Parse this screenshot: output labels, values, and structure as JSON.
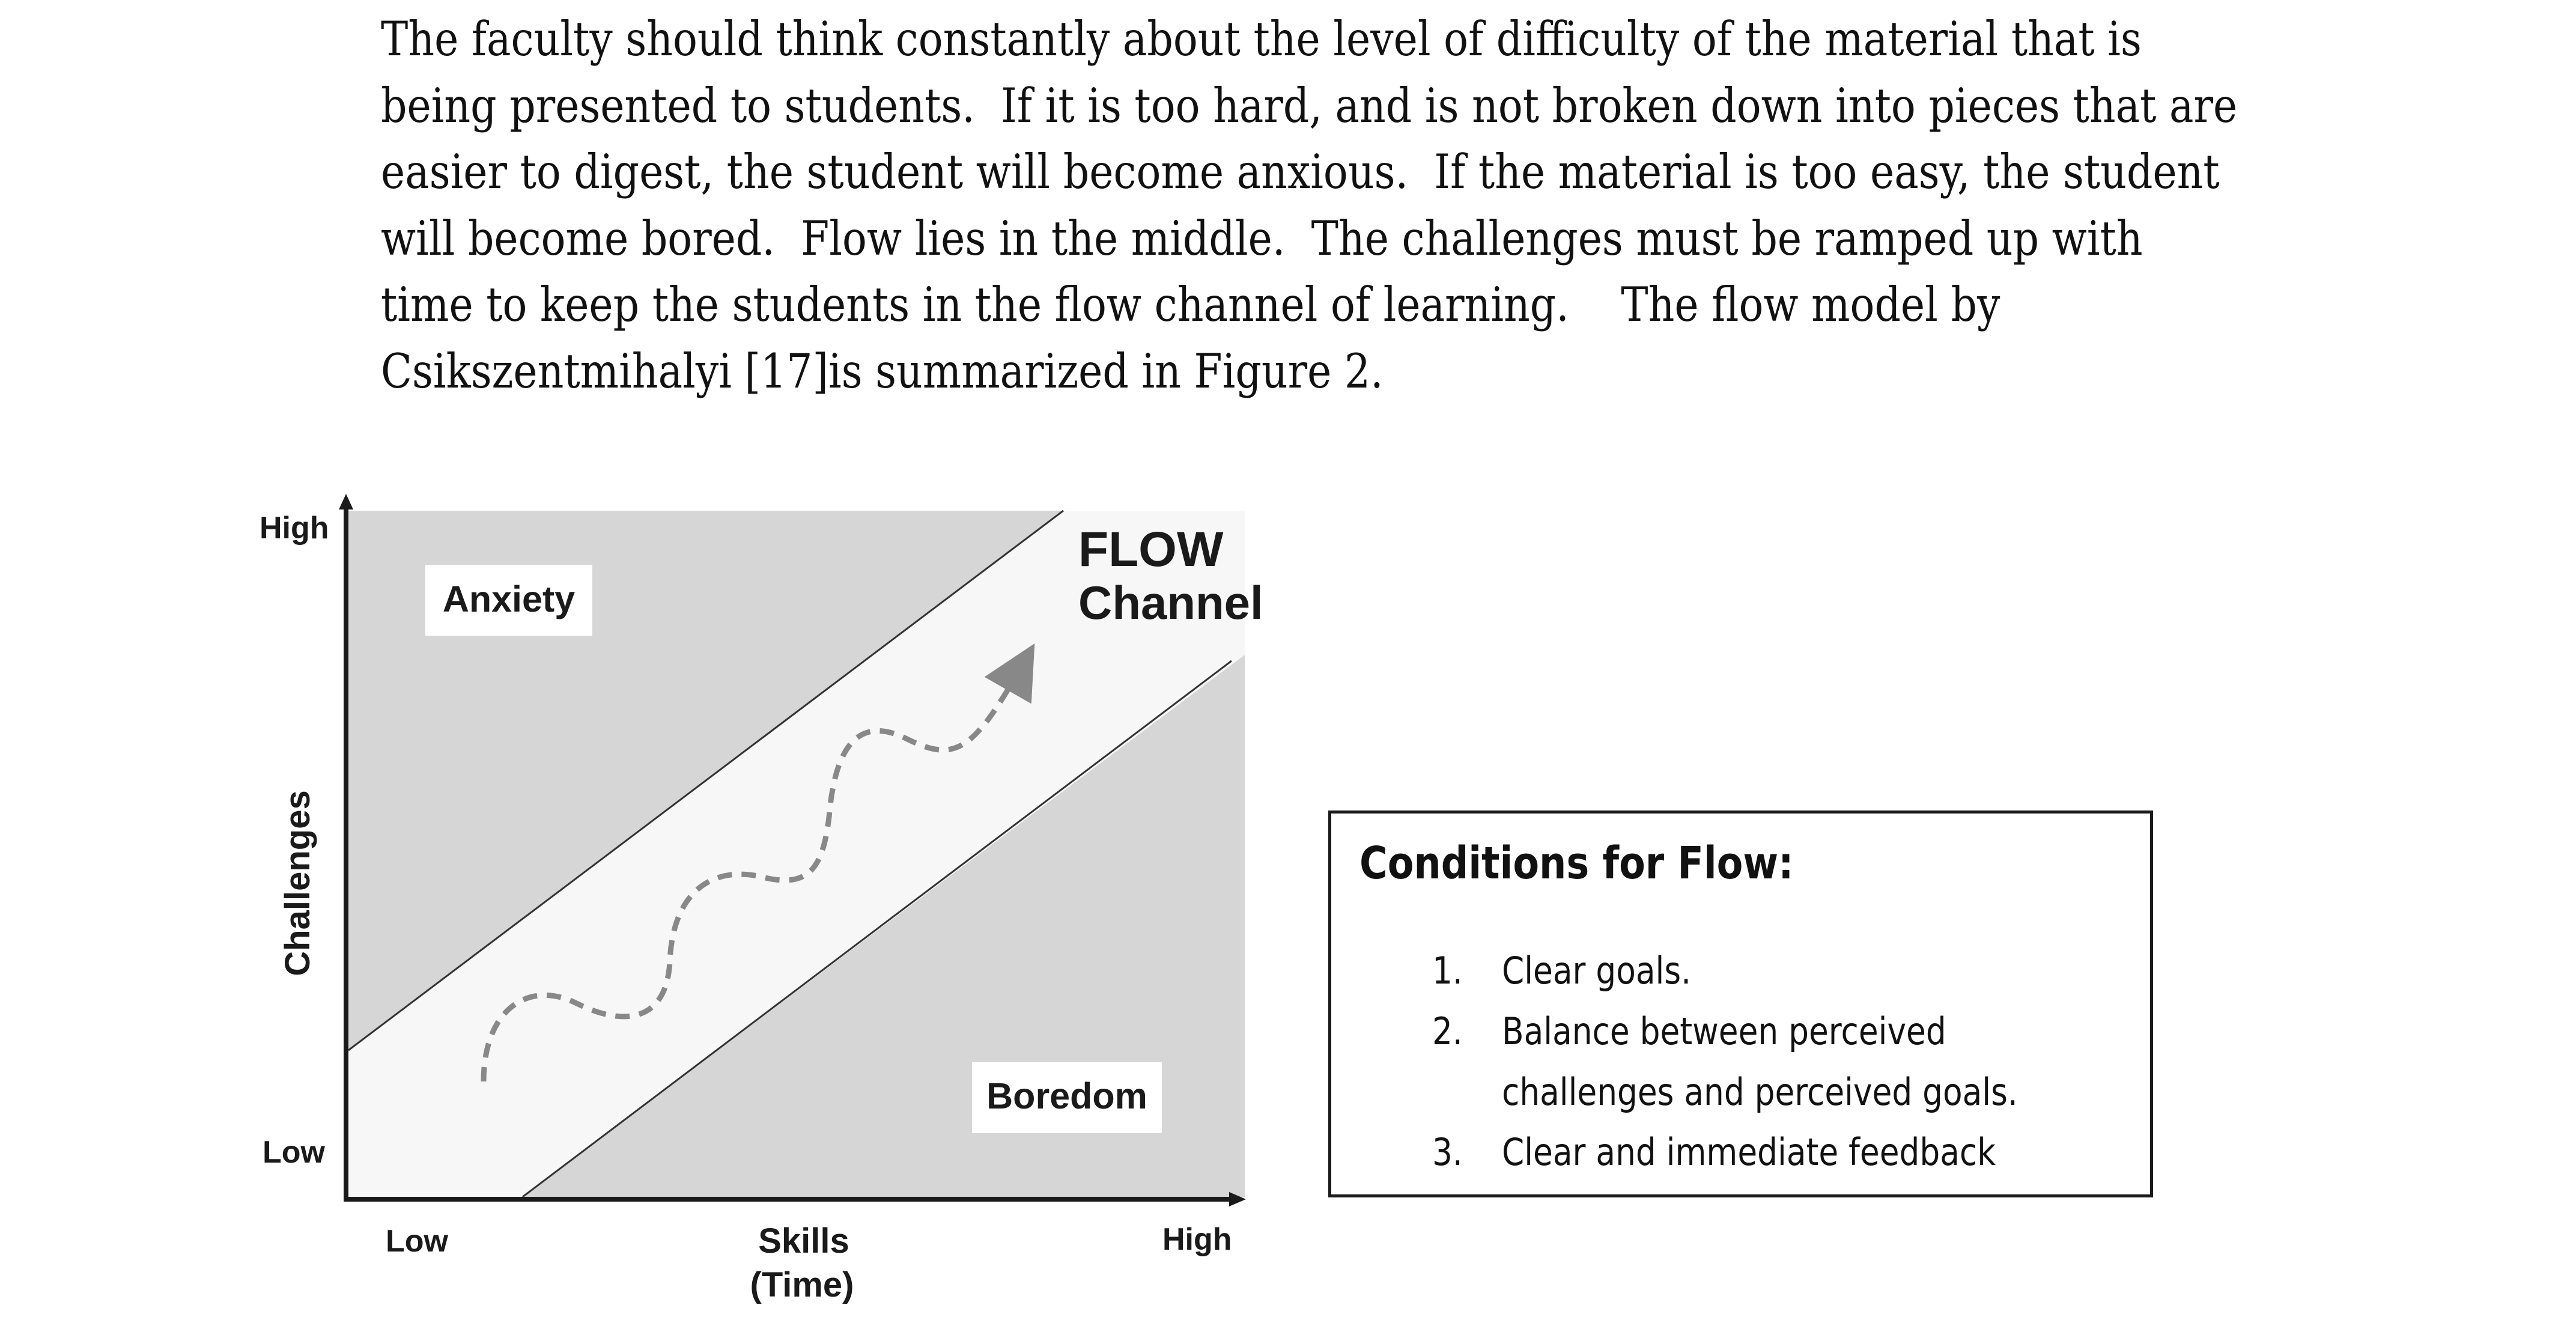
{
  "paragraph": {
    "lines": [
      "The faculty should think constantly about the level of difficulty of the material that is",
      "being presented to students.  If it is too hard, and is not broken down into pieces that are",
      "easier to digest, the student will become anxious.  If the material is too easy, the student",
      "will become bored.  Flow lies in the middle.  The challenges must be ramped up with",
      "time to keep the students in the flow channel of learning.    The flow model by",
      "Csikszentmihalyi [17]is summarized in Figure 2."
    ]
  },
  "figure": {
    "y_axis": {
      "label": "Challenges",
      "high": "High",
      "low": "Low"
    },
    "x_axis": {
      "label": "Skills",
      "sublabel": "(Time)",
      "low": "Low",
      "high": "High"
    },
    "regions": {
      "anxiety": "Anxiety",
      "boredom": "Boredom",
      "flow_line1": "FLOW",
      "flow_line2": "Channel"
    },
    "colors": {
      "shaded": "#d6d6d6",
      "channel": "#f7f7f7",
      "path": "#888888"
    }
  },
  "conditions": {
    "title": "Conditions for Flow:",
    "items": [
      {
        "num": "1.",
        "text": "Clear goals."
      },
      {
        "num": "2.",
        "text": "Balance between perceived",
        "text2": "challenges and perceived goals."
      },
      {
        "num": "3.",
        "text": "Clear and immediate feedback"
      }
    ]
  }
}
